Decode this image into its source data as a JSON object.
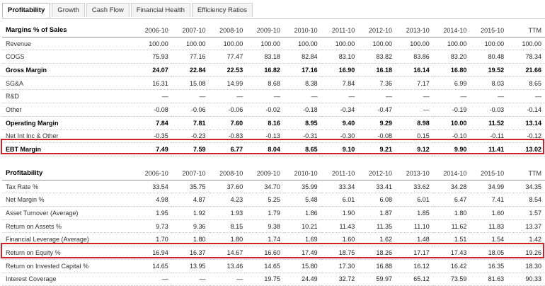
{
  "tabs": [
    {
      "label": "Profitability",
      "active": true
    },
    {
      "label": "Growth",
      "active": false
    },
    {
      "label": "Cash Flow",
      "active": false
    },
    {
      "label": "Financial Health",
      "active": false
    },
    {
      "label": "Efficiency Ratios",
      "active": false
    }
  ],
  "highlight_color": "#d0202a",
  "columns": [
    "2006-10",
    "2007-10",
    "2008-10",
    "2009-10",
    "2010-10",
    "2011-10",
    "2012-10",
    "2013-10",
    "2014-10",
    "2015-10",
    "TTM"
  ],
  "margins": {
    "title": "Margins % of Sales",
    "rows": [
      {
        "label": "Revenue",
        "bold": false,
        "values": [
          "100.00",
          "100.00",
          "100.00",
          "100.00",
          "100.00",
          "100.00",
          "100.00",
          "100.00",
          "100.00",
          "100.00",
          "100.00"
        ]
      },
      {
        "label": "COGS",
        "bold": false,
        "values": [
          "75.93",
          "77.16",
          "77.47",
          "83.18",
          "82.84",
          "83.10",
          "83.82",
          "83.86",
          "83.20",
          "80.48",
          "78.34"
        ]
      },
      {
        "label": "Gross Margin",
        "bold": true,
        "values": [
          "24.07",
          "22.84",
          "22.53",
          "16.82",
          "17.16",
          "16.90",
          "16.18",
          "16.14",
          "16.80",
          "19.52",
          "21.66"
        ]
      },
      {
        "label": "SG&A",
        "bold": false,
        "values": [
          "16.31",
          "15.08",
          "14.99",
          "8.68",
          "8.38",
          "7.84",
          "7.36",
          "7.17",
          "6.99",
          "8.03",
          "8.65"
        ]
      },
      {
        "label": "R&D",
        "bold": false,
        "values": [
          "—",
          "—",
          "—",
          "—",
          "—",
          "—",
          "—",
          "—",
          "—",
          "—",
          "—"
        ]
      },
      {
        "label": "Other",
        "bold": false,
        "values": [
          "-0.08",
          "-0.06",
          "-0.06",
          "-0.02",
          "-0.18",
          "-0.34",
          "-0.47",
          "—",
          "-0.19",
          "-0.03",
          "-0.14"
        ]
      },
      {
        "label": "Operating Margin",
        "bold": true,
        "values": [
          "7.84",
          "7.81",
          "7.60",
          "8.16",
          "8.95",
          "9.40",
          "9.29",
          "8.98",
          "10.00",
          "11.52",
          "13.14"
        ]
      },
      {
        "label": "Net Int Inc & Other",
        "bold": false,
        "values": [
          "-0.35",
          "-0.23",
          "-0.83",
          "-0.13",
          "-0.31",
          "-0.30",
          "-0.08",
          "0.15",
          "-0.10",
          "-0.11",
          "-0.12"
        ]
      },
      {
        "label": "EBT Margin",
        "bold": true,
        "highlight": true,
        "values": [
          "7.49",
          "7.59",
          "6.77",
          "8.04",
          "8.65",
          "9.10",
          "9.21",
          "9.12",
          "9.90",
          "11.41",
          "13.02"
        ]
      }
    ]
  },
  "profitability": {
    "title": "Profitability",
    "rows": [
      {
        "label": "Tax Rate %",
        "bold": false,
        "values": [
          "33.54",
          "35.75",
          "37.60",
          "34.70",
          "35.99",
          "33.34",
          "33.41",
          "33.62",
          "34.28",
          "34.99",
          "34.35"
        ]
      },
      {
        "label": "Net Margin %",
        "bold": false,
        "values": [
          "4.98",
          "4.87",
          "4.23",
          "5.25",
          "5.48",
          "6.01",
          "6.08",
          "6.01",
          "6.47",
          "7.41",
          "8.54"
        ]
      },
      {
        "label": "Asset Turnover (Average)",
        "bold": false,
        "values": [
          "1.95",
          "1.92",
          "1.93",
          "1.79",
          "1.86",
          "1.90",
          "1.87",
          "1.85",
          "1.80",
          "1.60",
          "1.57"
        ]
      },
      {
        "label": "Return on Assets %",
        "bold": false,
        "values": [
          "9.73",
          "9.36",
          "8.15",
          "9.38",
          "10.21",
          "11.43",
          "11.35",
          "11.10",
          "11.62",
          "11.83",
          "13.37"
        ]
      },
      {
        "label": "Financial Leverage (Average)",
        "bold": false,
        "values": [
          "1.70",
          "1.80",
          "1.80",
          "1.74",
          "1.69",
          "1.60",
          "1.62",
          "1.48",
          "1.51",
          "1.54",
          "1.42"
        ]
      },
      {
        "label": "Return on Equity %",
        "bold": false,
        "highlight": true,
        "values": [
          "16.94",
          "16.37",
          "14.67",
          "16.60",
          "17.49",
          "18.75",
          "18.26",
          "17.17",
          "17.43",
          "18.05",
          "19.26"
        ]
      },
      {
        "label": "Return on Invested Capital %",
        "bold": false,
        "values": [
          "14.65",
          "13.95",
          "13.46",
          "14.65",
          "15.80",
          "17.30",
          "16.88",
          "16.12",
          "16.42",
          "16.35",
          "18.30"
        ]
      },
      {
        "label": "Interest Coverage",
        "bold": false,
        "values": [
          "—",
          "—",
          "—",
          "19.75",
          "24.49",
          "32.72",
          "59.97",
          "65.12",
          "73.59",
          "81.63",
          "90.33"
        ]
      }
    ]
  }
}
